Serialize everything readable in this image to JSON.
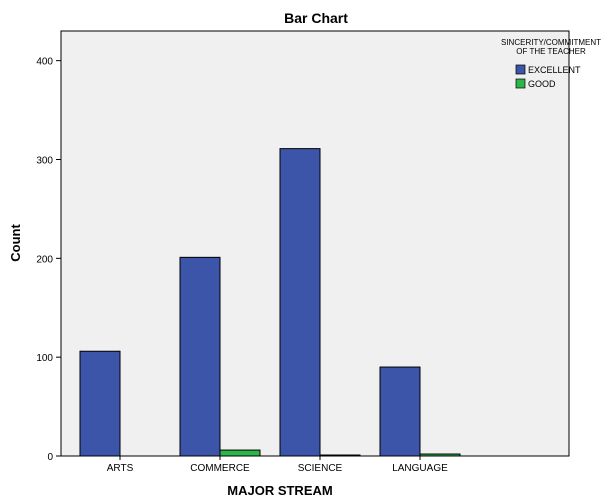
{
  "chart_data": {
    "type": "bar",
    "title": "Bar Chart",
    "xlabel": "MAJOR STREAM",
    "ylabel": "Count",
    "categories": [
      "ARTS",
      "COMMERCE",
      "SCIENCE",
      "LANGUAGE"
    ],
    "series": [
      {
        "name": "EXCELLENT",
        "color": "#3c55a8",
        "values": [
          106,
          201,
          311,
          90
        ]
      },
      {
        "name": "GOOD",
        "color": "#2db44a",
        "values": [
          0,
          6,
          1,
          2
        ]
      }
    ],
    "legend_title": [
      "SINCERITY/COMMITMENT",
      "OF THE TEACHER"
    ],
    "ylim": [
      0,
      430
    ],
    "yticks": [
      0,
      100,
      200,
      300,
      400
    ],
    "grid": false,
    "legend_position": "top-right",
    "plot_background": "#f0f0f0"
  }
}
